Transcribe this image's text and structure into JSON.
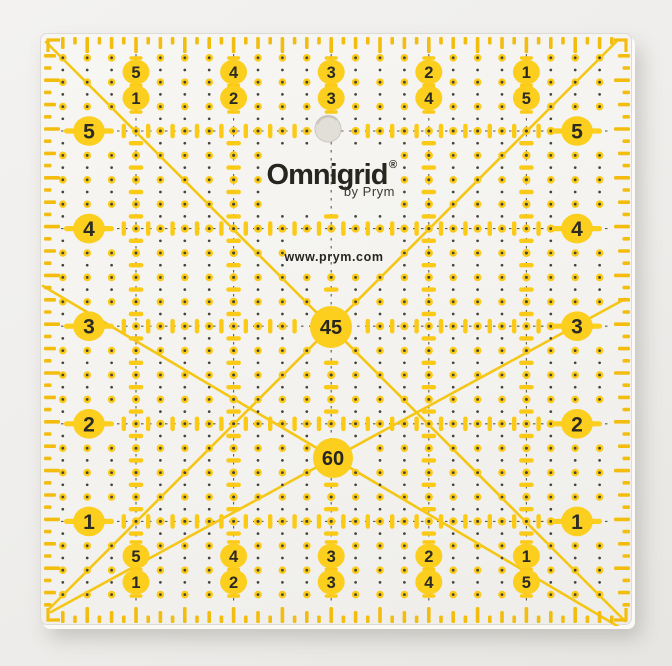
{
  "scene": {
    "description": "Product photo of a square transparent quilting ruler on a light grey background",
    "background_color": "#efeeec"
  },
  "ruler": {
    "brand": "Omnigrid",
    "brand_mark": "®",
    "brand_sub": "by Prym",
    "website": "www.prym.com",
    "angle_labels": {
      "diag45": "45",
      "diag60": "60"
    },
    "left_numbers": [
      "5",
      "4",
      "3",
      "2",
      "1"
    ],
    "right_numbers": [
      "5",
      "4",
      "3",
      "2",
      "1"
    ],
    "top_pairs": [
      [
        "5",
        "1"
      ],
      [
        "4",
        "2"
      ],
      [
        "3",
        "3"
      ],
      [
        "2",
        "4"
      ],
      [
        "1",
        "5"
      ]
    ],
    "bottom_pairs": [
      [
        "5",
        "1"
      ],
      [
        "4",
        "2"
      ],
      [
        "3",
        "3"
      ],
      [
        "2",
        "4"
      ],
      [
        "1",
        "5"
      ]
    ],
    "colors": {
      "yellow": "#fbca16",
      "yellow_blob": "#fcce1d",
      "yellow_tick": "#f3bd10",
      "yellow_line": "#f4c615",
      "ink": "#2b2b24",
      "grid_dash": "#5a584e",
      "dot_dark": "#45433b",
      "hole_fill": "#e2dfd8",
      "hole_edge": "#c9c6bf"
    }
  }
}
